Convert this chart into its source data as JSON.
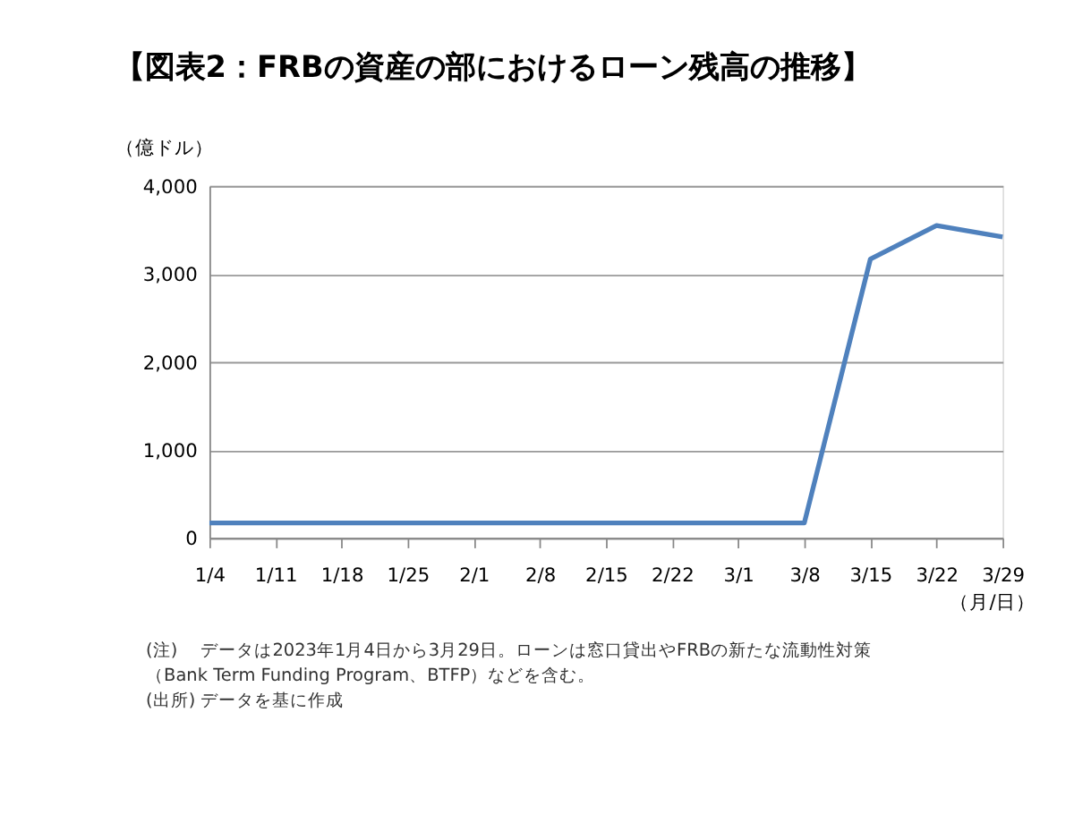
{
  "chart_data": {
    "type": "line",
    "title": "【図表2：FRBの資産の部におけるローン残高の推移】",
    "categories": [
      "1/4",
      "1/11",
      "1/18",
      "1/25",
      "2/1",
      "2/8",
      "2/15",
      "2/22",
      "3/1",
      "3/8",
      "3/15",
      "3/22",
      "3/29"
    ],
    "series": [
      {
        "color": "#4f81bd",
        "values": [
          170,
          170,
          170,
          170,
          170,
          170,
          170,
          170,
          170,
          170,
          3170,
          3550,
          3420
        ]
      }
    ],
    "ylabel": "（億ドル）",
    "xlabel": "（月/日）",
    "ylim": [
      0,
      4000
    ],
    "yticks": [
      {
        "value": 0,
        "label": "0"
      },
      {
        "value": 1000,
        "label": "1,000"
      },
      {
        "value": 2000,
        "label": "2,000"
      },
      {
        "value": 3000,
        "label": "3,000"
      },
      {
        "value": 4000,
        "label": "4,000"
      }
    ],
    "grid": "y",
    "legend": false,
    "marker": "none",
    "line_style": "solid",
    "annotations": [
      "(注)　  データは2023年1月4日から3月29日。ローンは窓口貸出やFRBの新たな流動性対策",
      "　　　　（Bank Term Funding Program、BTFP）などを含む。",
      "(出所)  データを基に作成"
    ]
  }
}
